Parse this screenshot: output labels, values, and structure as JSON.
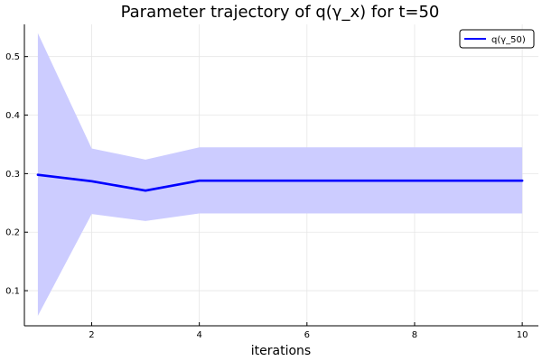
{
  "chart_data": {
    "type": "line",
    "title": "Parameter trajectory of q(γ_x) for t=50",
    "xlabel": "iterations",
    "ylabel": "",
    "xlim": [
      0.75,
      10.3
    ],
    "ylim": [
      0.04,
      0.555
    ],
    "xticks": [
      2,
      4,
      6,
      8,
      10
    ],
    "yticks": [
      0.1,
      0.2,
      0.3,
      0.4,
      0.5
    ],
    "xtick_labels": [
      "2",
      "4",
      "6",
      "8",
      "10"
    ],
    "ytick_labels": [
      "0.1",
      "0.2",
      "0.3",
      "0.4",
      "0.5"
    ],
    "grid": true,
    "legend_position": "top-right",
    "series": [
      {
        "name": "q(γ_50)",
        "color": "#0000ff",
        "band_color": "#ccccff",
        "x": [
          1,
          2,
          3,
          4,
          5,
          6,
          7,
          8,
          9,
          10
        ],
        "y": [
          0.298,
          0.287,
          0.271,
          0.288,
          0.288,
          0.288,
          0.288,
          0.288,
          0.288,
          0.288
        ],
        "lower": [
          0.057,
          0.231,
          0.219,
          0.232,
          0.232,
          0.232,
          0.232,
          0.232,
          0.232,
          0.232
        ],
        "upper": [
          0.54,
          0.343,
          0.324,
          0.345,
          0.345,
          0.345,
          0.345,
          0.345,
          0.345,
          0.345
        ]
      }
    ]
  }
}
